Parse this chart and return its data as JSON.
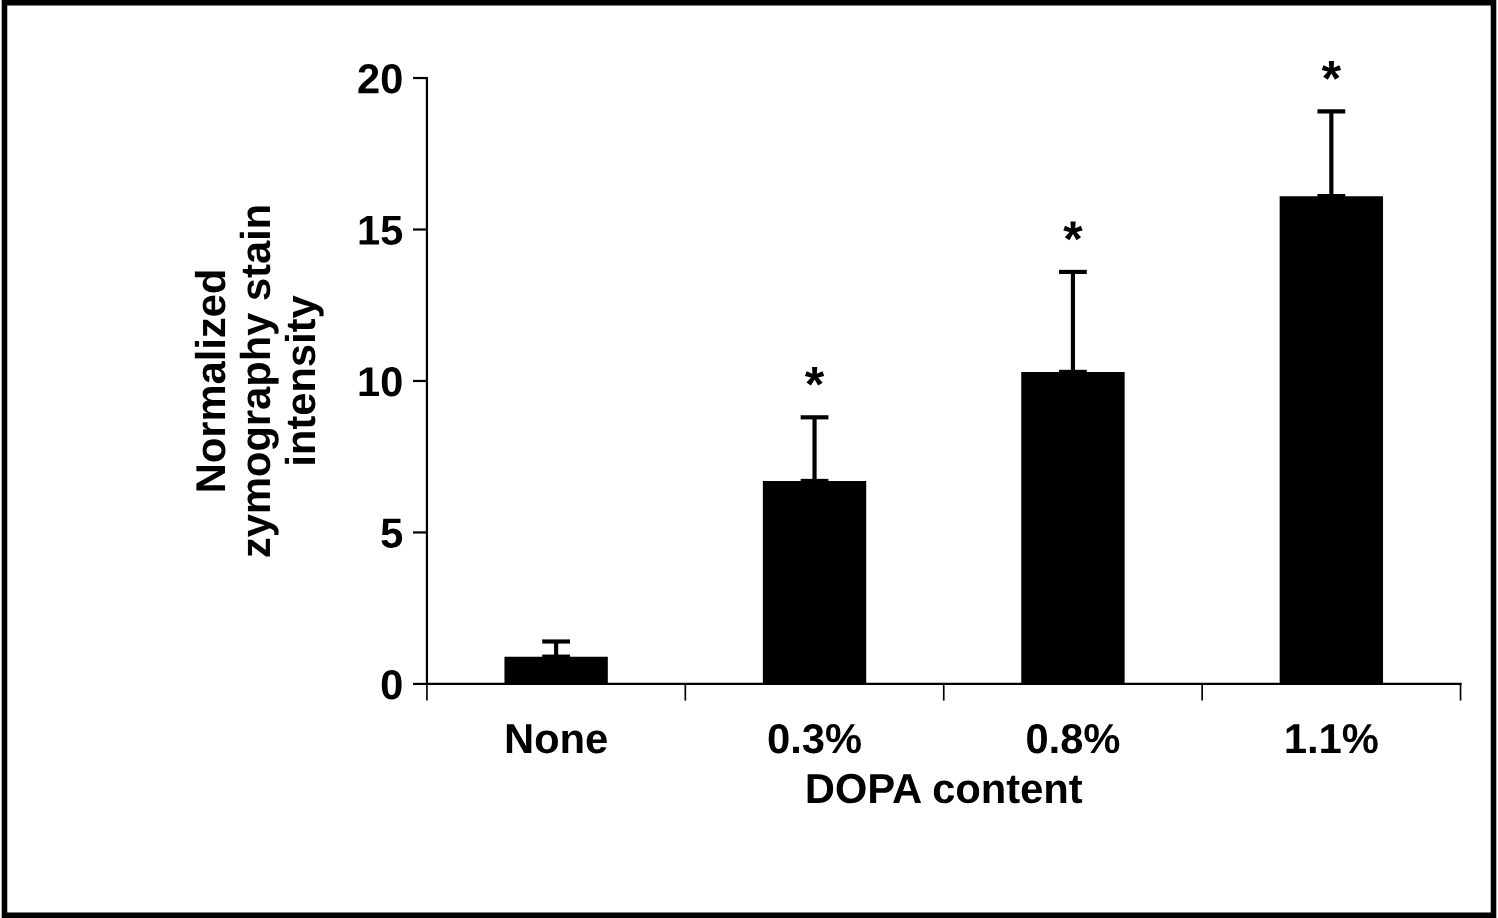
{
  "chart_data": {
    "type": "bar",
    "xlabel": "DOPA content",
    "ylabel": "Normalized\nzymography stain\nintensity",
    "categories": [
      "None",
      "0.3%",
      "0.8%",
      "1.1%"
    ],
    "values": [
      0.9,
      6.7,
      10.3,
      16.1
    ],
    "errors": [
      [
        0.9,
        1.4
      ],
      [
        6.7,
        8.8
      ],
      [
        10.3,
        13.6
      ],
      [
        16.1,
        18.9
      ]
    ],
    "color": "#000000",
    "ylim": [
      0,
      20
    ],
    "yticks": [
      0,
      5,
      10,
      15,
      20
    ],
    "grid": false,
    "annotations": [
      {
        "text": "*",
        "x": "0.3%",
        "y": 8.8
      },
      {
        "text": "*",
        "x": "0.8%",
        "y": 13.6
      },
      {
        "text": "*",
        "x": "1.1%",
        "y": 18.9
      }
    ]
  }
}
